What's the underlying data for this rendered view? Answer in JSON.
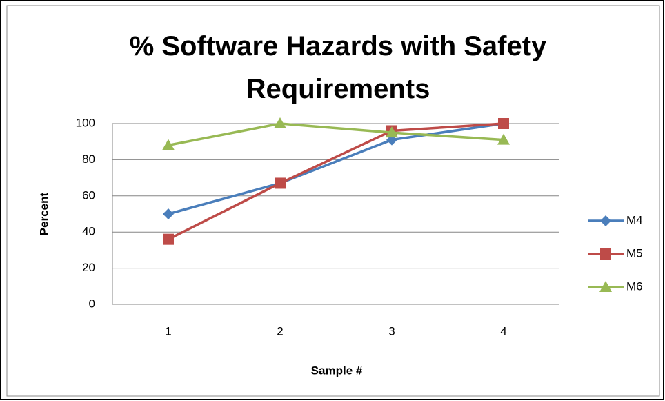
{
  "chart_data": {
    "type": "line",
    "title": "% Software Hazards with Safety Requirements",
    "x_label": "Sample #",
    "y_label": "Percent",
    "categories": [
      "1",
      "2",
      "3",
      "4"
    ],
    "series": [
      {
        "name": "M4",
        "color": "#4a7ebb",
        "marker": "diamond",
        "values": [
          50,
          67,
          91,
          100
        ]
      },
      {
        "name": "M5",
        "color": "#be4b48",
        "marker": "square",
        "values": [
          36,
          67,
          96,
          100
        ]
      },
      {
        "name": "M6",
        "color": "#98b954",
        "marker": "triangle",
        "values": [
          88,
          100,
          95,
          91
        ]
      }
    ],
    "ylim": [
      0,
      100
    ],
    "yticks": [
      0,
      20,
      40,
      60,
      80,
      100
    ],
    "grid": true,
    "legend": "right"
  }
}
